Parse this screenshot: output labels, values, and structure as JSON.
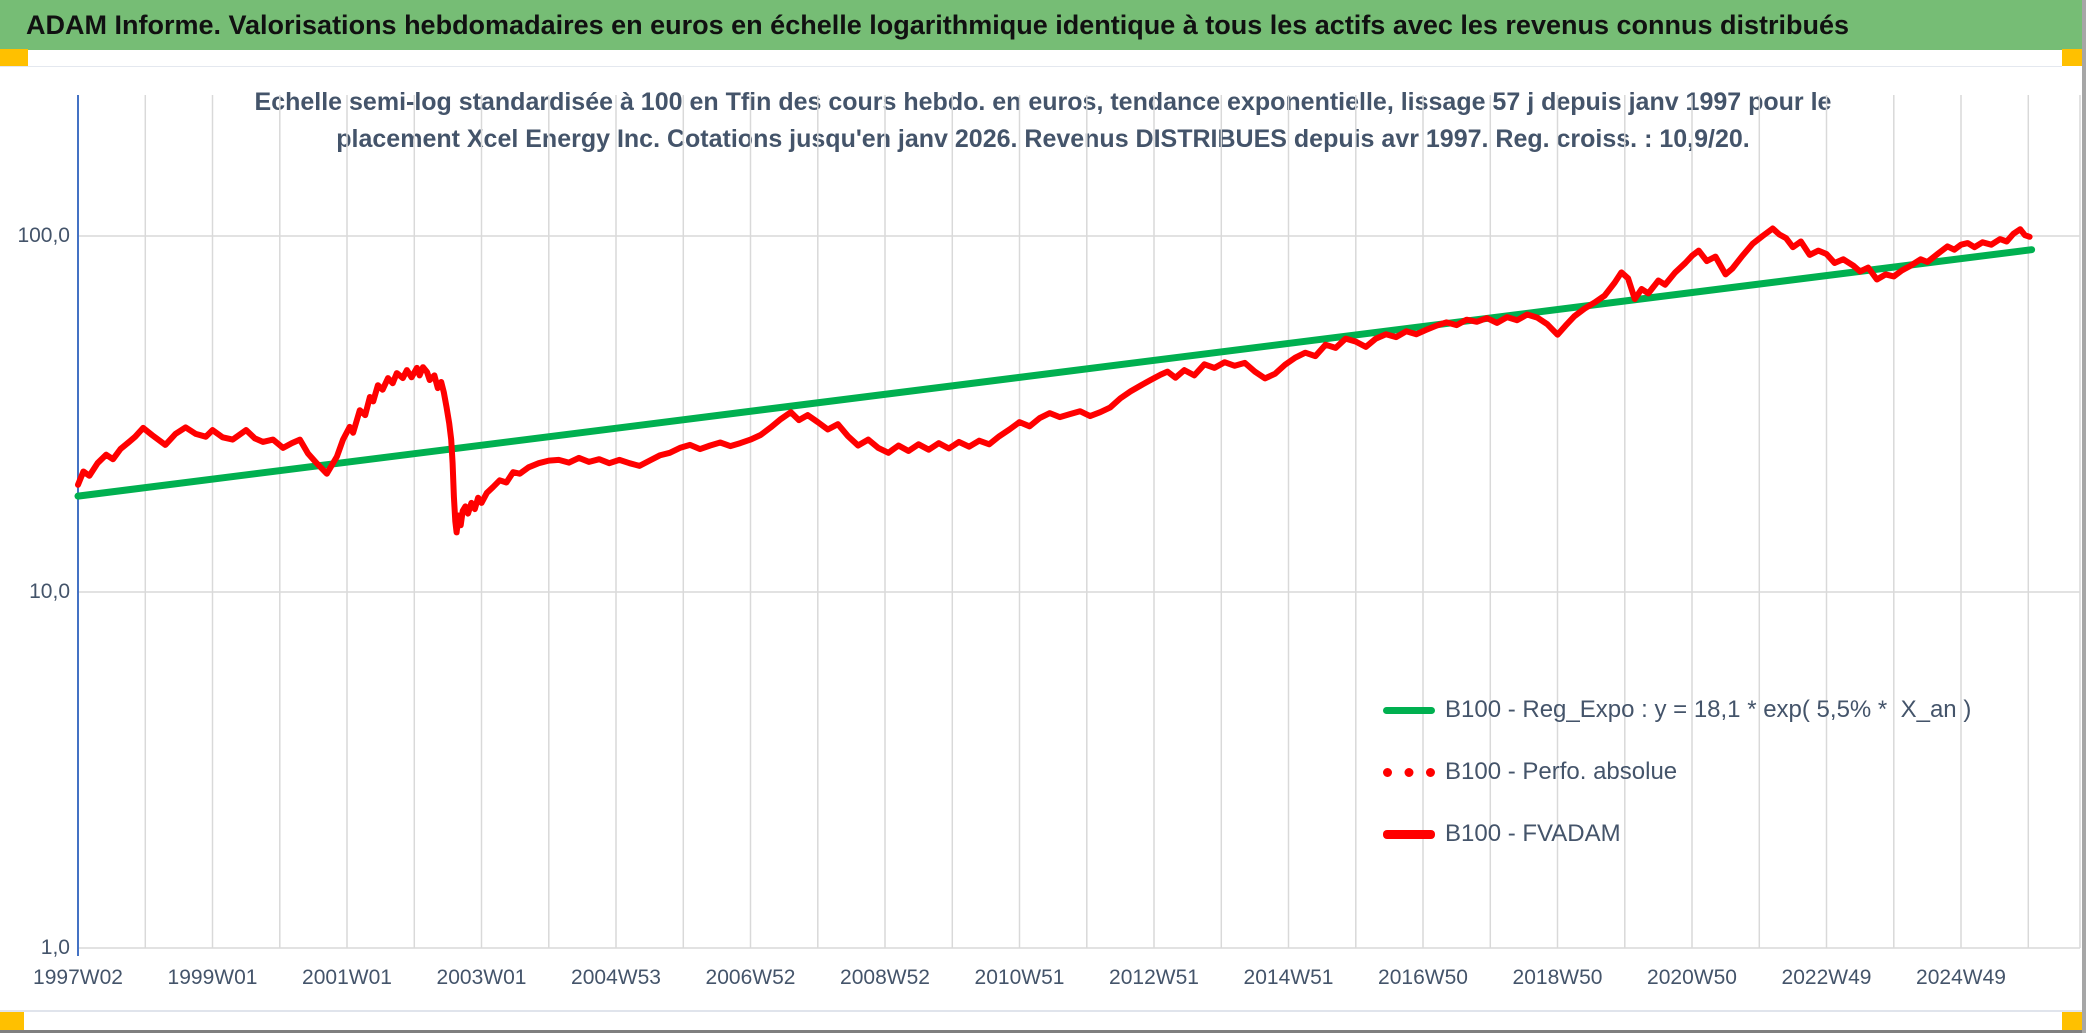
{
  "page": {
    "header_title": "ADAM Informe. Valorisations hebdomadaires en euros en échelle logarithmique identique à tous les actifs avec les revenus connus distribués",
    "accent_colors": {
      "banner_green": "#76BD75",
      "corner_gold": "#FFC000",
      "axis_blue": "#4472C4",
      "text_slate": "#44546A",
      "grid_gray": "#D9D9D9"
    }
  },
  "chart_data": {
    "type": "line",
    "title": "Echelle semi-log standardisée à 100 en Tfin des cours hebdo. en euros, tendance exponentielle, lissage 57 j depuis janv 1997 pour le placement Xcel Energy Inc. Cotations jusqu'en janv 2026. Revenus DISTRIBUES depuis avr 1997. Reg. croiss. : 10,9/20.",
    "title_lines": [
      "Echelle semi-log standardisée à 100 en Tfin des cours hebdo. en euros, tendance exponentielle, lissage 57 j depuis janv 1997 pour le",
      "placement Xcel Energy Inc. Cotations jusqu'en janv 2026. Revenus DISTRIBUES depuis avr 1997. Reg. croiss. : 10,9/20."
    ],
    "y_axis": {
      "scale": "log10",
      "tick_values": [
        100.0,
        10.0,
        1.0
      ],
      "tick_labels": [
        "100,0",
        "10,0",
        "1,0"
      ],
      "range": [
        1.0,
        249.0
      ],
      "grid": true
    },
    "x_axis": {
      "start_year": 1997,
      "end_year": 2026.8,
      "gridline_years": "every 1 year from 1997 to 2026",
      "ticks": [
        {
          "label": "1997W02",
          "year": 1997
        },
        {
          "label": "1999W01",
          "year": 1999
        },
        {
          "label": "2001W01",
          "year": 2001
        },
        {
          "label": "2003W01",
          "year": 2003
        },
        {
          "label": "2004W53",
          "year": 2005
        },
        {
          "label": "2006W52",
          "year": 2007
        },
        {
          "label": "2008W52",
          "year": 2009
        },
        {
          "label": "2010W51",
          "year": 2011
        },
        {
          "label": "2012W51",
          "year": 2013
        },
        {
          "label": "2014W51",
          "year": 2015
        },
        {
          "label": "2016W50",
          "year": 2017
        },
        {
          "label": "2018W50",
          "year": 2019
        },
        {
          "label": "2020W50",
          "year": 2021
        },
        {
          "label": "2022W49",
          "year": 2023
        },
        {
          "label": "2024W49",
          "year": 2025
        }
      ]
    },
    "legend": [
      {
        "label": "B100 - Reg_Expo : y = 18,1 * exp( 5,5% *  X_an )",
        "color": "#00B050",
        "style": "solid",
        "thickness": 7
      },
      {
        "label": "B100 - Perfo. absolue",
        "color": "#FF0000",
        "style": "dotted",
        "thickness": 9
      },
      {
        "label": "B100 - FVADAM",
        "color": "#FF0000",
        "style": "solid",
        "thickness": 9
      }
    ],
    "legend_position": "inside lower right",
    "series": [
      {
        "id": "reg-expo",
        "name": "B100 - Reg_Expo : y = 18,1 * exp( 5,5% *  X_an )",
        "color": "#00B050",
        "width": 7,
        "style": "solid",
        "points": [
          [
            1997.0,
            18.6
          ],
          [
            2026.05,
            91.5
          ]
        ]
      },
      {
        "id": "perfo-absolue",
        "name": "B100 - Perfo. absolue",
        "color": "#FF0000",
        "width": 0,
        "style": "dotted",
        "note": "coincides with B100 - FVADAM, not separately visible",
        "points": []
      },
      {
        "id": "fvadam",
        "name": "B100 - FVADAM",
        "color": "#FF0000",
        "width": 6,
        "style": "solid",
        "points": [
          [
            1997.0,
            20.0
          ],
          [
            1997.08,
            21.8
          ],
          [
            1997.17,
            21.2
          ],
          [
            1997.29,
            23.0
          ],
          [
            1997.42,
            24.3
          ],
          [
            1997.52,
            23.6
          ],
          [
            1997.63,
            25.2
          ],
          [
            1997.75,
            26.3
          ],
          [
            1997.85,
            27.3
          ],
          [
            1997.97,
            28.9
          ],
          [
            1998.1,
            27.6
          ],
          [
            1998.3,
            25.9
          ],
          [
            1998.45,
            27.8
          ],
          [
            1998.6,
            29.0
          ],
          [
            1998.75,
            27.8
          ],
          [
            1998.9,
            27.3
          ],
          [
            1999.0,
            28.5
          ],
          [
            1999.15,
            27.2
          ],
          [
            1999.3,
            26.8
          ],
          [
            1999.5,
            28.5
          ],
          [
            1999.63,
            27.0
          ],
          [
            1999.75,
            26.4
          ],
          [
            1999.9,
            26.8
          ],
          [
            2000.05,
            25.4
          ],
          [
            2000.18,
            26.2
          ],
          [
            2000.3,
            26.8
          ],
          [
            2000.42,
            24.5
          ],
          [
            2000.55,
            23.0
          ],
          [
            2000.7,
            21.5
          ],
          [
            2000.85,
            24.0
          ],
          [
            2000.94,
            26.8
          ],
          [
            2001.04,
            29.1
          ],
          [
            2001.09,
            28.0
          ],
          [
            2001.19,
            32.4
          ],
          [
            2001.27,
            31.4
          ],
          [
            2001.34,
            35.3
          ],
          [
            2001.39,
            34.3
          ],
          [
            2001.46,
            38.1
          ],
          [
            2001.53,
            37.0
          ],
          [
            2001.61,
            39.9
          ],
          [
            2001.68,
            38.6
          ],
          [
            2001.74,
            41.2
          ],
          [
            2001.83,
            39.9
          ],
          [
            2001.89,
            42.0
          ],
          [
            2001.96,
            40.1
          ],
          [
            2002.04,
            42.6
          ],
          [
            2002.08,
            40.6
          ],
          [
            2002.13,
            42.8
          ],
          [
            2002.19,
            41.5
          ],
          [
            2002.23,
            39.4
          ],
          [
            2002.3,
            40.6
          ],
          [
            2002.35,
            37.4
          ],
          [
            2002.4,
            38.9
          ],
          [
            2002.44,
            36.4
          ],
          [
            2002.48,
            33.1
          ],
          [
            2002.52,
            29.8
          ],
          [
            2002.55,
            26.8
          ],
          [
            2002.57,
            23.0
          ],
          [
            2002.59,
            18.5
          ],
          [
            2002.61,
            15.8
          ],
          [
            2002.63,
            14.7
          ],
          [
            2002.66,
            16.4
          ],
          [
            2002.69,
            15.4
          ],
          [
            2002.72,
            16.9
          ],
          [
            2002.76,
            17.4
          ],
          [
            2002.8,
            16.6
          ],
          [
            2002.85,
            17.8
          ],
          [
            2002.9,
            17.1
          ],
          [
            2002.95,
            18.4
          ],
          [
            2003.0,
            17.8
          ],
          [
            2003.08,
            19.0
          ],
          [
            2003.17,
            19.7
          ],
          [
            2003.27,
            20.6
          ],
          [
            2003.37,
            20.3
          ],
          [
            2003.47,
            21.7
          ],
          [
            2003.57,
            21.5
          ],
          [
            2003.7,
            22.4
          ],
          [
            2003.85,
            23.0
          ],
          [
            2004.0,
            23.4
          ],
          [
            2004.15,
            23.5
          ],
          [
            2004.3,
            23.1
          ],
          [
            2004.45,
            23.8
          ],
          [
            2004.6,
            23.2
          ],
          [
            2004.75,
            23.6
          ],
          [
            2004.9,
            23.0
          ],
          [
            2005.05,
            23.5
          ],
          [
            2005.2,
            23.0
          ],
          [
            2005.35,
            22.6
          ],
          [
            2005.5,
            23.4
          ],
          [
            2005.65,
            24.2
          ],
          [
            2005.8,
            24.6
          ],
          [
            2005.95,
            25.4
          ],
          [
            2006.1,
            25.9
          ],
          [
            2006.25,
            25.2
          ],
          [
            2006.4,
            25.8
          ],
          [
            2006.55,
            26.3
          ],
          [
            2006.7,
            25.7
          ],
          [
            2006.85,
            26.2
          ],
          [
            2007.0,
            26.8
          ],
          [
            2007.15,
            27.6
          ],
          [
            2007.3,
            29.0
          ],
          [
            2007.45,
            30.6
          ],
          [
            2007.6,
            32.0
          ],
          [
            2007.72,
            30.4
          ],
          [
            2007.85,
            31.4
          ],
          [
            2008.0,
            30.0
          ],
          [
            2008.15,
            28.6
          ],
          [
            2008.3,
            29.6
          ],
          [
            2008.45,
            27.4
          ],
          [
            2008.6,
            25.8
          ],
          [
            2008.75,
            26.8
          ],
          [
            2008.9,
            25.4
          ],
          [
            2009.05,
            24.6
          ],
          [
            2009.2,
            25.8
          ],
          [
            2009.35,
            24.9
          ],
          [
            2009.5,
            26.0
          ],
          [
            2009.65,
            25.1
          ],
          [
            2009.8,
            26.2
          ],
          [
            2009.95,
            25.3
          ],
          [
            2010.1,
            26.4
          ],
          [
            2010.25,
            25.6
          ],
          [
            2010.4,
            26.6
          ],
          [
            2010.55,
            26.0
          ],
          [
            2010.7,
            27.4
          ],
          [
            2010.85,
            28.6
          ],
          [
            2011.0,
            30.0
          ],
          [
            2011.15,
            29.2
          ],
          [
            2011.3,
            30.8
          ],
          [
            2011.45,
            31.8
          ],
          [
            2011.6,
            31.0
          ],
          [
            2011.75,
            31.6
          ],
          [
            2011.9,
            32.2
          ],
          [
            2012.05,
            31.2
          ],
          [
            2012.2,
            32.0
          ],
          [
            2012.35,
            33.0
          ],
          [
            2012.5,
            35.0
          ],
          [
            2012.65,
            36.6
          ],
          [
            2012.8,
            38.0
          ],
          [
            2012.95,
            39.4
          ],
          [
            2013.1,
            40.8
          ],
          [
            2013.2,
            41.6
          ],
          [
            2013.32,
            40.0
          ],
          [
            2013.45,
            42.0
          ],
          [
            2013.6,
            40.6
          ],
          [
            2013.75,
            43.6
          ],
          [
            2013.9,
            42.6
          ],
          [
            2014.05,
            44.2
          ],
          [
            2014.2,
            43.2
          ],
          [
            2014.35,
            44.0
          ],
          [
            2014.5,
            41.6
          ],
          [
            2014.65,
            39.8
          ],
          [
            2014.8,
            41.0
          ],
          [
            2014.95,
            43.5
          ],
          [
            2015.1,
            45.5
          ],
          [
            2015.25,
            47.0
          ],
          [
            2015.4,
            46.0
          ],
          [
            2015.55,
            49.5
          ],
          [
            2015.7,
            48.5
          ],
          [
            2015.85,
            51.5
          ],
          [
            2016.0,
            50.5
          ],
          [
            2016.15,
            48.8
          ],
          [
            2016.3,
            51.5
          ],
          [
            2016.45,
            53.0
          ],
          [
            2016.6,
            52.0
          ],
          [
            2016.75,
            54.0
          ],
          [
            2016.9,
            53.0
          ],
          [
            2017.05,
            54.5
          ],
          [
            2017.2,
            56.0
          ],
          [
            2017.35,
            57.2
          ],
          [
            2017.5,
            56.2
          ],
          [
            2017.65,
            58.2
          ],
          [
            2017.8,
            57.4
          ],
          [
            2017.95,
            58.8
          ],
          [
            2018.1,
            57.0
          ],
          [
            2018.25,
            59.2
          ],
          [
            2018.4,
            58.0
          ],
          [
            2018.55,
            60.2
          ],
          [
            2018.7,
            59.0
          ],
          [
            2018.85,
            56.5
          ],
          [
            2019.0,
            52.8
          ],
          [
            2019.12,
            56.0
          ],
          [
            2019.25,
            59.5
          ],
          [
            2019.4,
            62.5
          ],
          [
            2019.55,
            65.0
          ],
          [
            2019.7,
            68.0
          ],
          [
            2019.85,
            74.0
          ],
          [
            2019.95,
            79.0
          ],
          [
            2020.05,
            76.0
          ],
          [
            2020.15,
            66.5
          ],
          [
            2020.25,
            71.0
          ],
          [
            2020.35,
            69.0
          ],
          [
            2020.5,
            75.0
          ],
          [
            2020.6,
            73.0
          ],
          [
            2020.75,
            79.0
          ],
          [
            2020.9,
            84.0
          ],
          [
            2021.0,
            88.0
          ],
          [
            2021.1,
            91.0
          ],
          [
            2021.22,
            85.0
          ],
          [
            2021.35,
            87.5
          ],
          [
            2021.5,
            78.0
          ],
          [
            2021.6,
            81.0
          ],
          [
            2021.75,
            88.0
          ],
          [
            2021.9,
            95.0
          ],
          [
            2022.05,
            100.0
          ],
          [
            2022.2,
            105.0
          ],
          [
            2022.3,
            101.0
          ],
          [
            2022.4,
            98.5
          ],
          [
            2022.5,
            93.0
          ],
          [
            2022.62,
            96.5
          ],
          [
            2022.75,
            88.5
          ],
          [
            2022.88,
            91.0
          ],
          [
            2023.0,
            89.0
          ],
          [
            2023.12,
            84.0
          ],
          [
            2023.25,
            86.0
          ],
          [
            2023.4,
            82.5
          ],
          [
            2023.5,
            79.5
          ],
          [
            2023.62,
            81.5
          ],
          [
            2023.75,
            75.5
          ],
          [
            2023.88,
            78.0
          ],
          [
            2024.0,
            77.0
          ],
          [
            2024.12,
            80.0
          ],
          [
            2024.25,
            82.5
          ],
          [
            2024.4,
            86.0
          ],
          [
            2024.5,
            84.5
          ],
          [
            2024.65,
            89.0
          ],
          [
            2024.8,
            93.5
          ],
          [
            2024.9,
            91.5
          ],
          [
            2025.0,
            94.5
          ],
          [
            2025.1,
            95.5
          ],
          [
            2025.2,
            93.0
          ],
          [
            2025.32,
            96.0
          ],
          [
            2025.45,
            94.5
          ],
          [
            2025.58,
            98.0
          ],
          [
            2025.68,
            96.5
          ],
          [
            2025.78,
            101.5
          ],
          [
            2025.88,
            104.5
          ],
          [
            2025.95,
            100.5
          ],
          [
            2026.02,
            99.5
          ]
        ]
      }
    ]
  }
}
